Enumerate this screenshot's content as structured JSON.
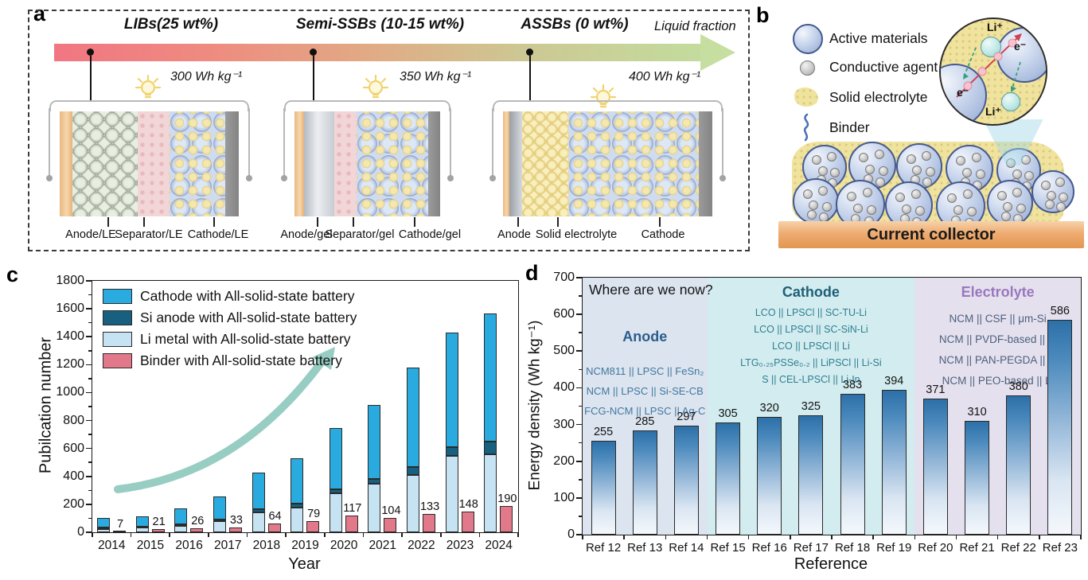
{
  "figure": {
    "panel_labels": {
      "a": "a",
      "b": "b",
      "c": "c",
      "d": "d"
    }
  },
  "panel_a": {
    "stages": [
      {
        "label": "LIBs(25  wt%)",
        "energy": "300 Wh kg⁻¹"
      },
      {
        "label": "Semi-SSBs (10-15 wt%)",
        "energy": "350 Wh kg⁻¹"
      },
      {
        "label": "ASSBs (0 wt%)",
        "energy": "400 Wh kg⁻¹"
      }
    ],
    "arrow_label": "Liquid fraction",
    "arrow_colors": [
      "#f17682",
      "#e8a07e",
      "#d8c18c",
      "#c5dc9d"
    ],
    "batteries": [
      {
        "labels": [
          "Anode/LE",
          "Separator/LE",
          "Cathode/LE"
        ]
      },
      {
        "labels": [
          "Anode/gel",
          "Separator/gel",
          "Cathode/gel"
        ]
      },
      {
        "labels": [
          "Anode",
          "Solid electrolyte",
          "Cathode"
        ]
      }
    ]
  },
  "panel_b": {
    "legend": [
      {
        "icon": "active-material-sphere-icon",
        "label": "Active materials"
      },
      {
        "icon": "conductive-agent-sphere-icon",
        "label": "Conductive agent"
      },
      {
        "icon": "solid-electrolyte-blob-icon",
        "label": "Solid electrolyte"
      },
      {
        "icon": "binder-squiggle-icon",
        "label": "Binder"
      }
    ],
    "inset": {
      "li_top": "Li⁺",
      "li_bottom": "Li⁺",
      "e_left": "e⁻",
      "e_right": "e⁻"
    },
    "collector_label": "Current collector"
  },
  "chart_data": [
    {
      "id": "publications-by-year",
      "type": "stacked-bar",
      "xlabel": "Year",
      "ylabel": "Pubilcation number",
      "ylim": [
        0,
        1800
      ],
      "ytick_step": 200,
      "ytick_minor_step": 100,
      "grid": false,
      "legend_position": "top-left",
      "categories": [
        "2014",
        "2015",
        "2016",
        "2017",
        "2018",
        "2019",
        "2020",
        "2021",
        "2022",
        "2023",
        "2024"
      ],
      "series": [
        {
          "name": "Cathode with All-solid-state battery",
          "color": "#2aabdf",
          "role": "stack",
          "values": [
            70,
            74,
            115,
            162,
            265,
            325,
            437,
            530,
            715,
            820,
            915
          ]
        },
        {
          "name": "Si anode with All-solid-state battery",
          "color": "#17607f",
          "role": "stack",
          "values": [
            8,
            8,
            10,
            15,
            25,
            30,
            30,
            32,
            55,
            65,
            92
          ]
        },
        {
          "name": "Li metal with All-solid-state battery",
          "color": "#c6e3f4",
          "role": "stack",
          "values": [
            25,
            33,
            45,
            78,
            140,
            175,
            278,
            348,
            410,
            545,
            558
          ]
        },
        {
          "name": "Binder with All-solid-state battery",
          "color": "#e2798a",
          "role": "side",
          "labeled": true,
          "values": [
            7,
            21,
            26,
            33,
            64,
            79,
            117,
            104,
            133,
            148,
            190
          ]
        }
      ],
      "stack_bottom_to_top": [
        2,
        1,
        0
      ]
    },
    {
      "id": "energy-density-by-reference",
      "type": "bar",
      "xlabel": "Reference",
      "ylabel": "Energy density (Wh kg⁻¹)",
      "ylim": [
        0,
        700
      ],
      "ytick_step": 100,
      "ytick_minor_step": 50,
      "annotation": "Where are we now?",
      "bar_gradient": [
        "#2c70a8",
        "#f4f8fc"
      ],
      "categories": [
        "Ref 12",
        "Ref 13",
        "Ref 14",
        "Ref 15",
        "Ref 16",
        "Ref 17",
        "Ref 18",
        "Ref 19",
        "Ref 20",
        "Ref 21",
        "Ref 22",
        "Ref 23"
      ],
      "values": [
        255,
        285,
        297,
        305,
        320,
        325,
        383,
        394,
        371,
        310,
        380,
        586
      ],
      "regions": [
        {
          "label": "Anode",
          "span": [
            0,
            3
          ],
          "bg": "#dce4ef",
          "title_color": "#2b5d8c",
          "line_color": "#41789f",
          "lines": [
            "NCM811 || LPSC || FeSn₂",
            "NCM || LPSC || Si-SE-CB",
            "FCG-NCM || LPSC || Ag-C"
          ]
        },
        {
          "label": "Cathode",
          "span": [
            3,
            8
          ],
          "bg": "#d3ecef",
          "title_color": "#1e6078",
          "line_color": "#2e7f92",
          "lines": [
            "LCO || LPSCl || SC-TU-Li",
            "LCO || LPSCl || SC-SiN-Li",
            "LCO || LPSCl || Li",
            "LTG₀.₂₅PSSe₀.₂ || LiPSCl || Li-Si",
            "S || CEL-LPSCl || Li-In"
          ]
        },
        {
          "label": "Electrolyte",
          "span": [
            8,
            12
          ],
          "bg": "#e5e0ee",
          "title_color": "#9a77bd",
          "line_color": "#4a617d",
          "lines": [
            "NCM || CSF || μm-Si",
            "NCM || PVDF-based || Li",
            "NCM || PAN-PEGDA || Li",
            "NCM || PEO-based || Li"
          ]
        }
      ]
    }
  ]
}
